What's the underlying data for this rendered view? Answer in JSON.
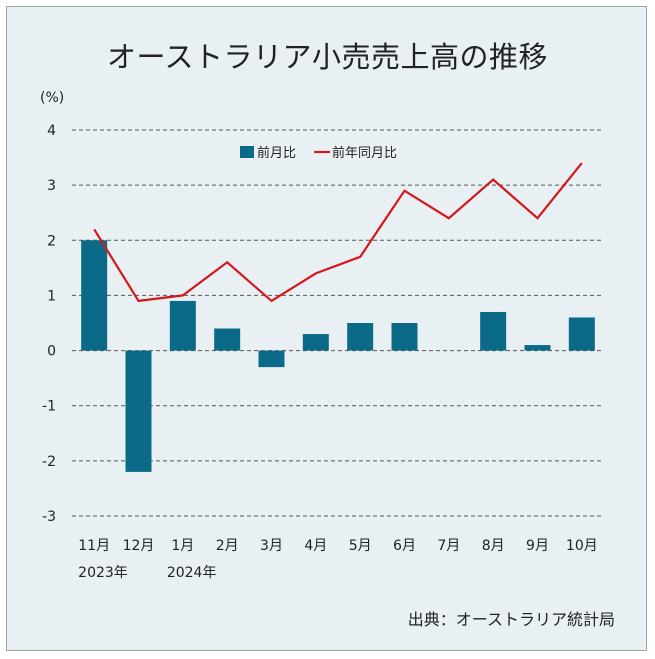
{
  "title": "オーストラリア小売売上高の推移",
  "source": "出典：オーストラリア統計局",
  "colors": {
    "background": "#e9f0f4",
    "bar": "#0b6a88",
    "line": "#d4171c",
    "grid": "#555555"
  },
  "chart_data": {
    "type": "bar+line",
    "ylabel": "(%)",
    "ylim": [
      -3,
      4
    ],
    "yticks": [
      4,
      3,
      2,
      1,
      0,
      -1,
      -2,
      -3
    ],
    "grid": true,
    "legend_position": "top-center",
    "categories": [
      "11月",
      "12月",
      "1月",
      "2月",
      "3月",
      "4月",
      "5月",
      "6月",
      "7月",
      "8月",
      "9月",
      "10月"
    ],
    "year_labels": [
      {
        "index": 0,
        "label": "2023年"
      },
      {
        "index": 2,
        "label": "2024年"
      }
    ],
    "series": [
      {
        "name": "前月比",
        "type": "bar",
        "values": [
          2.0,
          -2.2,
          0.9,
          0.4,
          -0.3,
          0.3,
          0.5,
          0.5,
          null,
          0.7,
          0.1,
          0.6
        ]
      },
      {
        "name": "前年同月比",
        "type": "line",
        "values": [
          2.2,
          0.9,
          1.0,
          1.6,
          0.9,
          1.4,
          1.7,
          2.9,
          2.4,
          3.1,
          2.4,
          3.4
        ]
      }
    ]
  }
}
